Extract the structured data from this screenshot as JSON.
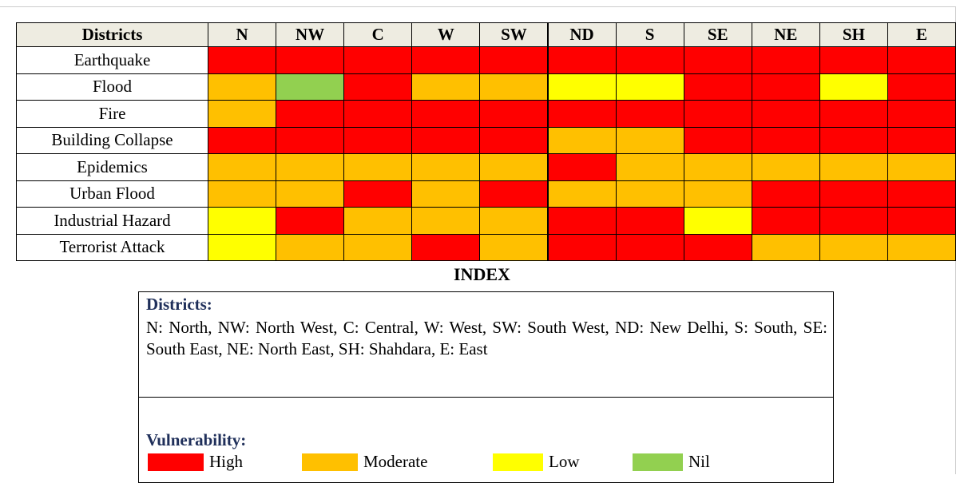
{
  "table": {
    "header": [
      "Districts",
      "N",
      "NW",
      "C",
      "W",
      "SW",
      "ND",
      "S",
      "SE",
      "NE",
      "SH",
      "E"
    ],
    "rows": [
      {
        "hazard": "Earthquake",
        "cells": [
          "High",
          "High",
          "High",
          "High",
          "High",
          "High",
          "High",
          "High",
          "High",
          "High",
          "High"
        ]
      },
      {
        "hazard": "Flood",
        "cells": [
          "Moderate",
          "Nil",
          "High",
          "Moderate",
          "Moderate",
          "Low",
          "Low",
          "High",
          "High",
          "Low",
          "High"
        ]
      },
      {
        "hazard": "Fire",
        "cells": [
          "Moderate",
          "High",
          "High",
          "High",
          "High",
          "High",
          "High",
          "High",
          "High",
          "High",
          "High"
        ]
      },
      {
        "hazard": "Building Collapse",
        "cells": [
          "High",
          "High",
          "High",
          "High",
          "High",
          "Moderate",
          "Moderate",
          "High",
          "High",
          "High",
          "High"
        ]
      },
      {
        "hazard": "Epidemics",
        "cells": [
          "Moderate",
          "Moderate",
          "Moderate",
          "Moderate",
          "Moderate",
          "High",
          "Moderate",
          "Moderate",
          "Moderate",
          "Moderate",
          "Moderate"
        ]
      },
      {
        "hazard": "Urban Flood",
        "cells": [
          "Moderate",
          "Moderate",
          "High",
          "Moderate",
          "High",
          "Moderate",
          "Moderate",
          "Moderate",
          "High",
          "High",
          "High"
        ]
      },
      {
        "hazard": "Industrial Hazard",
        "cells": [
          "Low",
          "High",
          "Moderate",
          "Moderate",
          "Moderate",
          "High",
          "High",
          "Low",
          "High",
          "High",
          "High"
        ]
      },
      {
        "hazard": "Terrorist Attack",
        "cells": [
          "Low",
          "Moderate",
          "Moderate",
          "High",
          "Moderate",
          "High",
          "High",
          "High",
          "Moderate",
          "Moderate",
          "Moderate"
        ]
      }
    ]
  },
  "index": {
    "title": "INDEX",
    "districts_title": "Districts:",
    "districts_text": "N: North, NW: North West, C: Central, W: West, SW: South West, ND: New Delhi, S: South, SE: South East, NE: North East, SH: Shahdara, E: East",
    "vulnerability_title": "Vulnerability:",
    "legend": [
      {
        "label": "High",
        "color": "#ff0000"
      },
      {
        "label": "Moderate",
        "color": "#ffc000"
      },
      {
        "label": "Low",
        "color": "#ffff00"
      },
      {
        "label": "Nil",
        "color": "#92d050"
      }
    ]
  }
}
